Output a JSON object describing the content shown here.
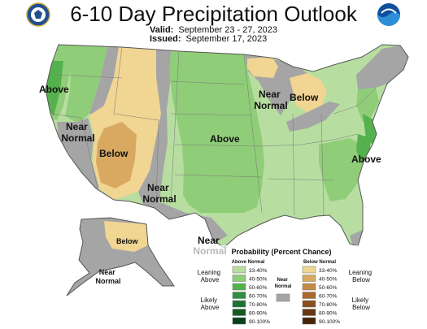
{
  "title": "6-10 Day Precipitation Outlook",
  "valid_label": "Valid:",
  "valid_value": "September 23 - 27, 2023",
  "issued_label": "Issued:",
  "issued_value": "September 17, 2023",
  "colors": {
    "above_33_40": "#b7dea0",
    "above_40_50": "#90cd78",
    "above_50_60": "#55b04e",
    "above_60_70": "#2f8f3f",
    "above_70_80": "#1e7233",
    "above_80_90": "#125a26",
    "above_90_100": "#08401a",
    "near_normal": "#a5a5a5",
    "below_33_40": "#f1d592",
    "below_40_50": "#d9a962",
    "below_50_60": "#c58a46",
    "below_60_70": "#a9692d",
    "below_70_80": "#8a4d1d",
    "below_80_90": "#6a3712",
    "below_90_100": "#48230a"
  },
  "map_labels": {
    "above_west": "Above",
    "near_normal_west": "Near\nNormal",
    "below_southwest": "Below",
    "near_normal_southwest": "Near\nNormal",
    "above_plains": "Above",
    "near_normal_great_lakes": "Near\nNormal",
    "below_great_lakes": "Below",
    "above_east": "Above",
    "near_normal_texas": "Near\nNormal",
    "below_alaska": "Below",
    "near_normal_alaska": "Near\nNormal"
  },
  "legend": {
    "title": "Probability (Percent Chance)",
    "above_header": "Above Normal",
    "below_header": "Below Normal",
    "near_header": "Near\nNormal",
    "leaning_above": "Leaning\nAbove",
    "likely_above": "Likely\nAbove",
    "leaning_below": "Leaning\nBelow",
    "likely_below": "Likely\nBelow",
    "ranges": [
      "33-40%",
      "40-50%",
      "50-60%",
      "60-70%",
      "70-80%",
      "80-90%",
      "90-100%"
    ]
  }
}
